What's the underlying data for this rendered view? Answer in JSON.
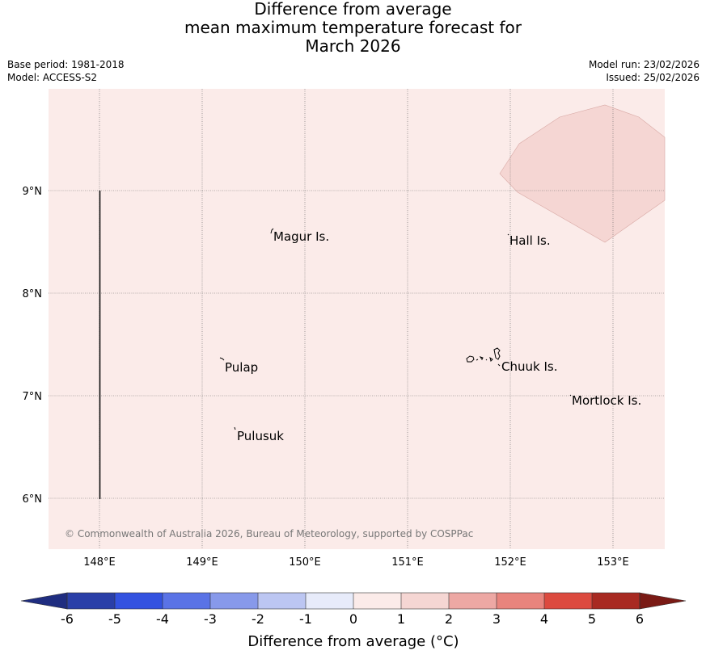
{
  "title": {
    "line1": "Difference from average",
    "line2": "mean maximum temperature forecast for",
    "line3": "March 2026"
  },
  "meta": {
    "base_period": "Base period: 1981-2018",
    "model": "Model: ACCESS-S2",
    "model_run": "Model run: 23/02/2026",
    "issued": "Issued: 25/02/2026"
  },
  "map": {
    "background_color": "#fbebe9",
    "anomaly_patch_color": "#f5d6d3",
    "copyright": "© Commonwealth of Australia 2026, Bureau of Meteorology, supported by COSPPac",
    "lon_labels": [
      "148°E",
      "149°E",
      "150°E",
      "151°E",
      "152°E",
      "153°E"
    ],
    "lat_labels": [
      "9°N",
      "8°N",
      "7°N",
      "6°N"
    ],
    "places": [
      {
        "name": "Magur Is."
      },
      {
        "name": "Hall Is."
      },
      {
        "name": "Pulap"
      },
      {
        "name": "Chuuk Is."
      },
      {
        "name": "Mortlock Is."
      },
      {
        "name": "Pulusuk"
      }
    ]
  },
  "colorbar": {
    "ticks": [
      "-6",
      "-5",
      "-4",
      "-3",
      "-2",
      "-1",
      "0",
      "1",
      "2",
      "3",
      "4",
      "5",
      "6"
    ],
    "colors": [
      "#2a3fa8",
      "#3352e0",
      "#5a73e6",
      "#8799ea",
      "#bcc6f2",
      "#e7ebfa",
      "#fbebe9",
      "#f5d6d3",
      "#eda8a4",
      "#e8847d",
      "#dc4a3f",
      "#a82a22"
    ],
    "low_extend_color": "#1f2d80",
    "high_extend_color": "#7a1a15",
    "label": "Difference from average (°C)"
  }
}
